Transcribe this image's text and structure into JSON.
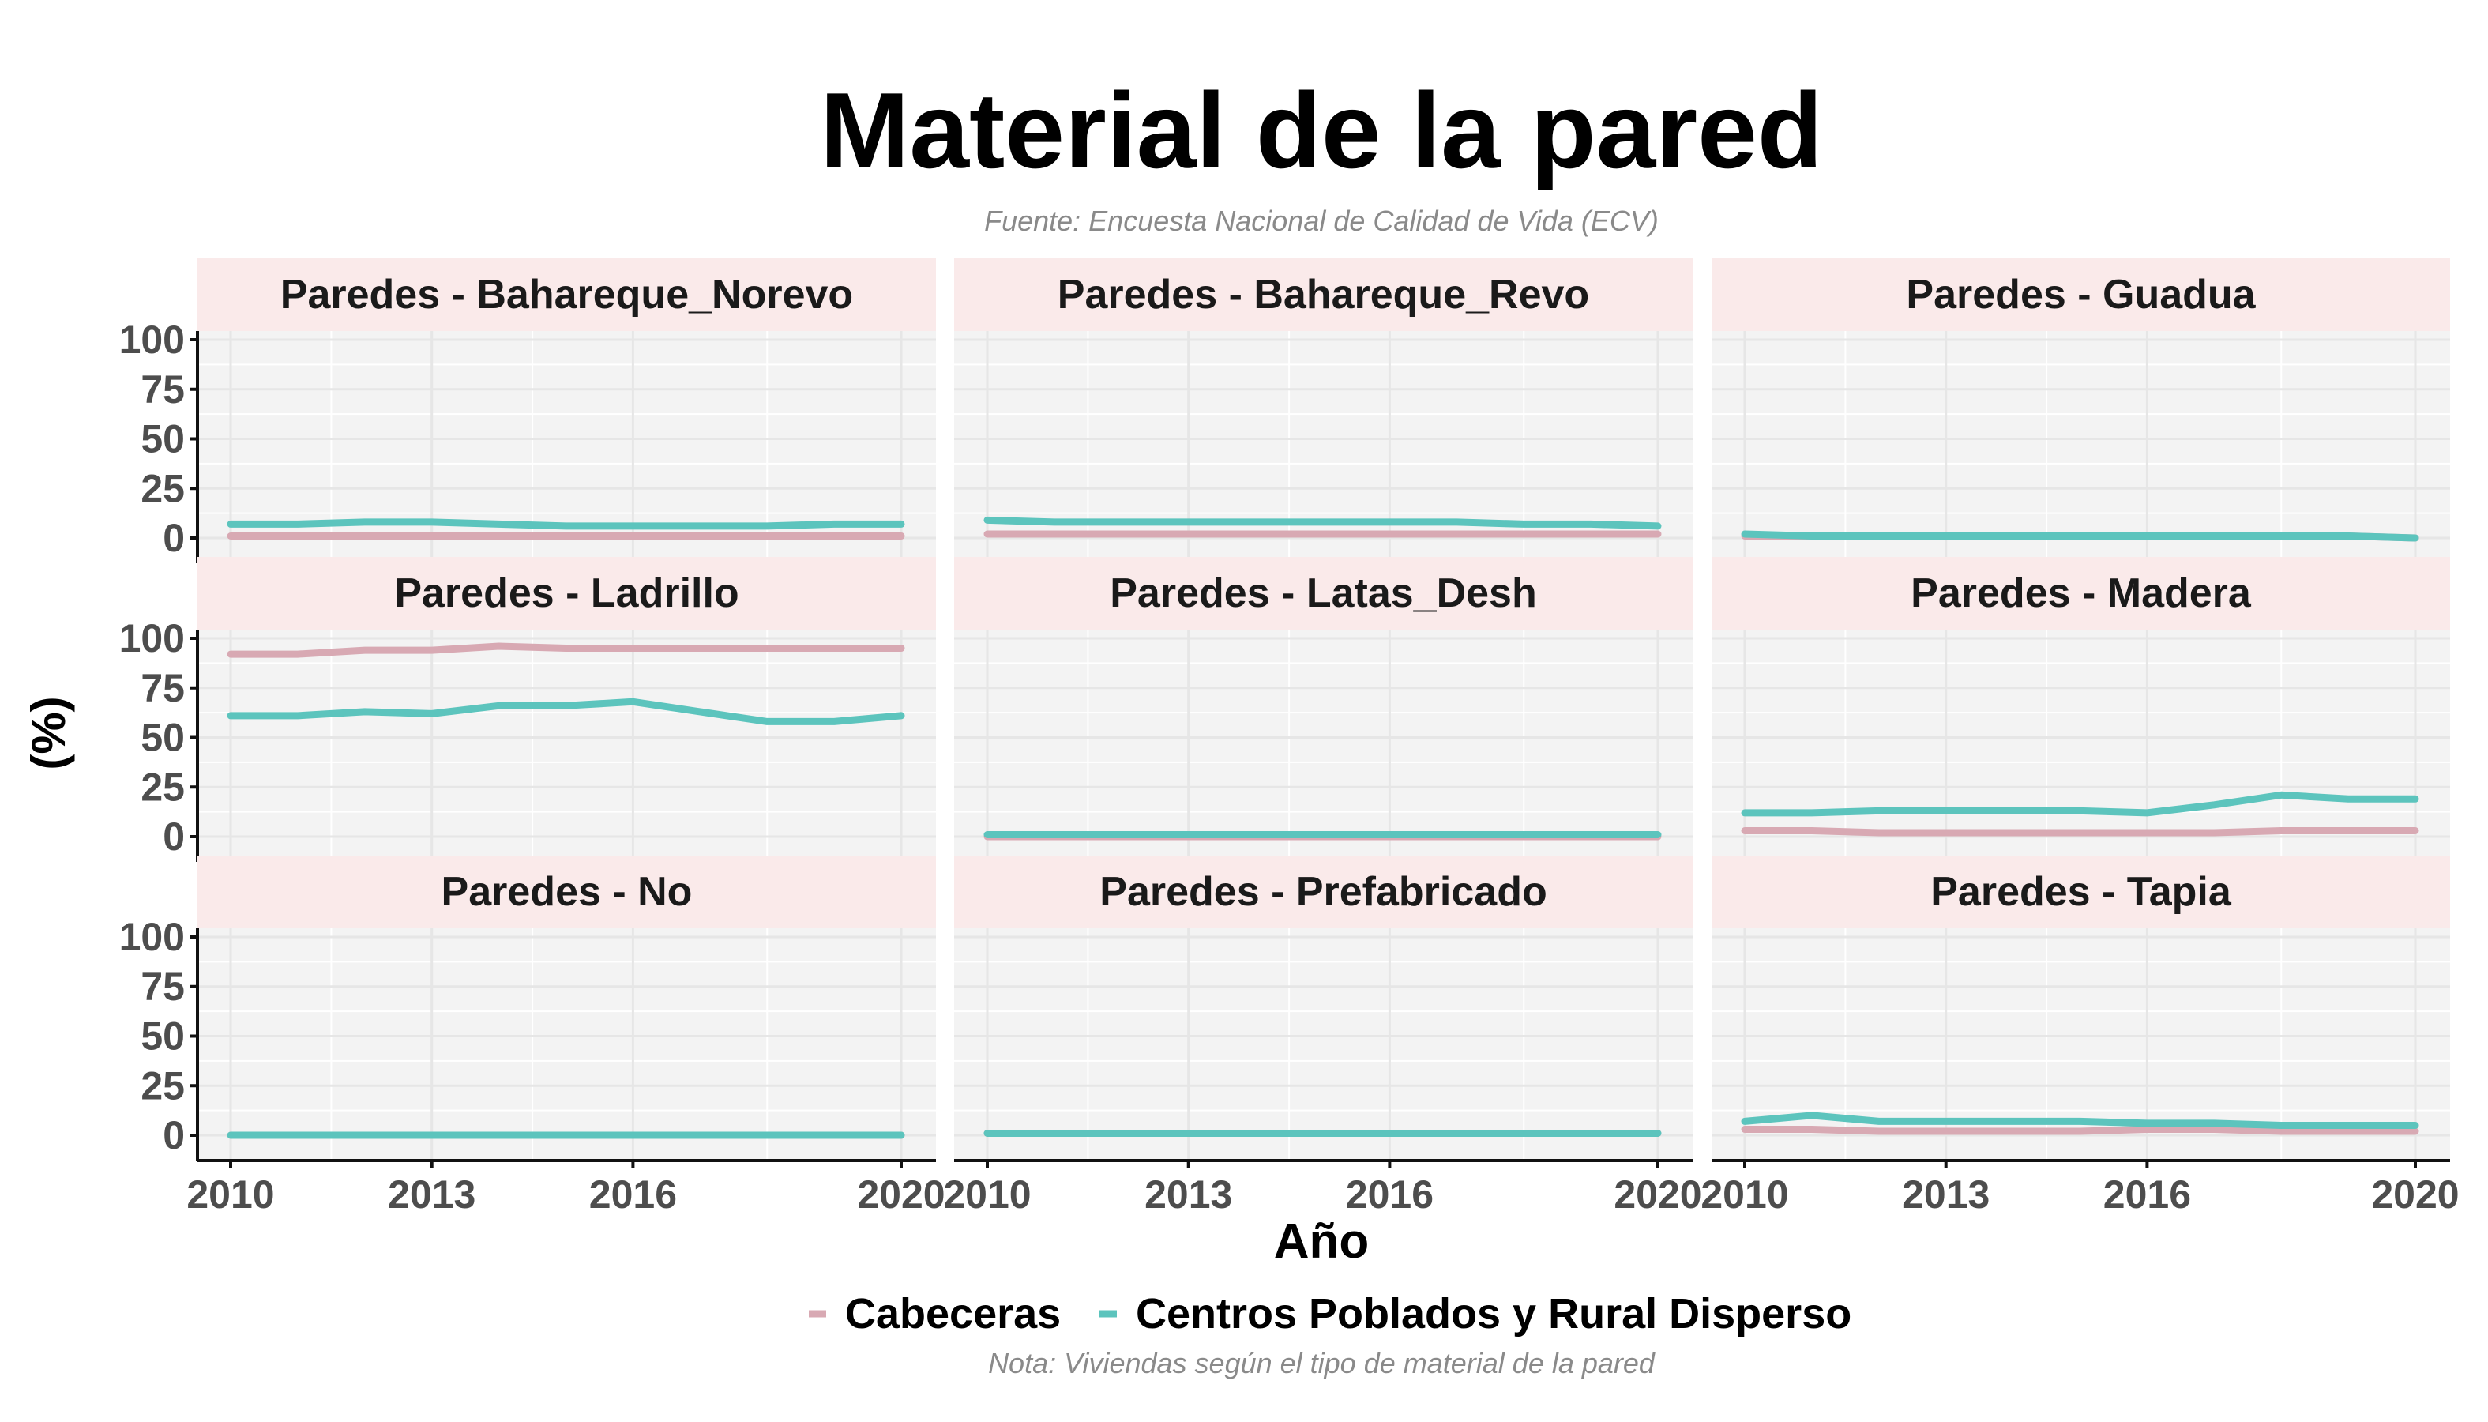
{
  "chart_data": {
    "type": "line",
    "title": "Material de la pared",
    "subtitle": "Fuente: Encuesta Nacional de Calidad de Vida (ECV)",
    "caption": "Nota: Viviendas según el tipo de material de la pared",
    "xlabel": "Año",
    "ylabel": "(%)",
    "xlim": [
      2010,
      2020
    ],
    "ylim": [
      0,
      100
    ],
    "x_ticks": [
      2010,
      2013,
      2016,
      2020
    ],
    "y_ticks": [
      0,
      25,
      50,
      75,
      100
    ],
    "grid": true,
    "legend": {
      "placement": "bottom",
      "entries": [
        "Cabeceras",
        "Centros Poblados y Rural Disperso"
      ]
    },
    "colors": {
      "Cabeceras": "#d8a9b3",
      "Centros Poblados y Rural Disperso": "#5cc4bd"
    },
    "x": [
      2010,
      2011,
      2012,
      2013,
      2014,
      2015,
      2016,
      2017,
      2018,
      2019,
      2020
    ],
    "panels": [
      {
        "title": "Paredes -  Bahareque_Norevo",
        "series": [
          {
            "name": "Cabeceras",
            "values": [
              1,
              1,
              1,
              1,
              1,
              1,
              1,
              1,
              1,
              1,
              1
            ]
          },
          {
            "name": "Centros Poblados y Rural Disperso",
            "values": [
              7,
              7,
              8,
              8,
              7,
              6,
              6,
              6,
              6,
              7,
              7
            ]
          }
        ]
      },
      {
        "title": "Paredes -  Bahareque_Revo",
        "series": [
          {
            "name": "Cabeceras",
            "values": [
              2,
              2,
              2,
              2,
              2,
              2,
              2,
              2,
              2,
              2,
              2
            ]
          },
          {
            "name": "Centros Poblados y Rural Disperso",
            "values": [
              9,
              8,
              8,
              8,
              8,
              8,
              8,
              8,
              7,
              7,
              6
            ]
          }
        ]
      },
      {
        "title": "Paredes -  Guadua",
        "series": [
          {
            "name": "Cabeceras",
            "values": [
              1,
              1,
              1,
              1,
              1,
              1,
              1,
              1,
              1,
              1,
              0
            ]
          },
          {
            "name": "Centros Poblados y Rural Disperso",
            "values": [
              2,
              1,
              1,
              1,
              1,
              1,
              1,
              1,
              1,
              1,
              0
            ]
          }
        ]
      },
      {
        "title": "Paredes -  Ladrillo",
        "series": [
          {
            "name": "Cabeceras",
            "values": [
              92,
              92,
              94,
              94,
              96,
              95,
              95,
              95,
              95,
              95,
              95
            ]
          },
          {
            "name": "Centros Poblados y Rural Disperso",
            "values": [
              61,
              61,
              63,
              62,
              66,
              66,
              68,
              63,
              58,
              58,
              61
            ]
          }
        ]
      },
      {
        "title": "Paredes -  Latas_Desh",
        "series": [
          {
            "name": "Cabeceras",
            "values": [
              0,
              0,
              0,
              0,
              0,
              0,
              0,
              0,
              0,
              0,
              0
            ]
          },
          {
            "name": "Centros Poblados y Rural Disperso",
            "values": [
              1,
              1,
              1,
              1,
              1,
              1,
              1,
              1,
              1,
              1,
              1
            ]
          }
        ]
      },
      {
        "title": "Paredes -  Madera",
        "series": [
          {
            "name": "Cabeceras",
            "values": [
              3,
              3,
              2,
              2,
              2,
              2,
              2,
              2,
              3,
              3,
              3
            ]
          },
          {
            "name": "Centros Poblados y Rural Disperso",
            "values": [
              12,
              12,
              13,
              13,
              13,
              13,
              12,
              16,
              21,
              19,
              19
            ]
          }
        ]
      },
      {
        "title": "Paredes -  No",
        "series": [
          {
            "name": "Cabeceras",
            "values": [
              0,
              0,
              0,
              0,
              0,
              0,
              0,
              0,
              0,
              0,
              0
            ]
          },
          {
            "name": "Centros Poblados y Rural Disperso",
            "values": [
              0,
              0,
              0,
              0,
              0,
              0,
              0,
              0,
              0,
              0,
              0
            ]
          }
        ]
      },
      {
        "title": "Paredes -  Prefabricado",
        "series": [
          {
            "name": "Cabeceras",
            "values": [
              1,
              1,
              1,
              1,
              1,
              1,
              1,
              1,
              1,
              1,
              1
            ]
          },
          {
            "name": "Centros Poblados y Rural Disperso",
            "values": [
              1,
              1,
              1,
              1,
              1,
              1,
              1,
              1,
              1,
              1,
              1
            ]
          }
        ]
      },
      {
        "title": "Paredes -  Tapia",
        "series": [
          {
            "name": "Cabeceras",
            "values": [
              3,
              3,
              2,
              2,
              2,
              2,
              3,
              3,
              2,
              2,
              2
            ]
          },
          {
            "name": "Centros Poblados y Rural Disperso",
            "values": [
              7,
              10,
              7,
              7,
              7,
              7,
              6,
              6,
              5,
              5,
              5
            ]
          }
        ]
      }
    ]
  }
}
